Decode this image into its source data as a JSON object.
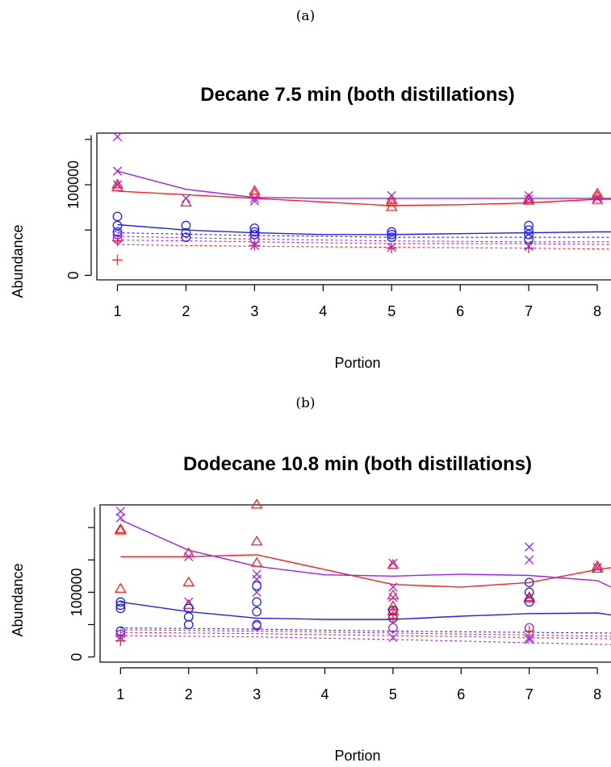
{
  "panels": {
    "a": {
      "label": "(a)"
    },
    "b": {
      "label": "(b)"
    }
  },
  "chart_data": [
    {
      "type": "scatter",
      "title": "Decane 7.5 min (both distillations)",
      "xlabel": "Portion",
      "ylabel": "Abundance",
      "xlim": [
        0.7,
        8.2
      ],
      "ylim": [
        -5000,
        157000
      ],
      "x_ticks": [
        "1",
        "2",
        "3",
        "4",
        "5",
        "6",
        "7",
        "8"
      ],
      "y_ticks": [
        {
          "value": 0,
          "label": "0"
        },
        {
          "value": 100000,
          "label": "100000"
        }
      ],
      "colors": {
        "red": "#ff2020",
        "blue": "#2020ff",
        "purple": "#a020f0"
      },
      "point_groups": [
        {
          "color": "red",
          "shape": "triangle",
          "points": [
            [
              1,
              97000
            ],
            [
              1,
              100000
            ],
            [
              2,
              80000
            ],
            [
              3,
              90000
            ],
            [
              3,
              93000
            ],
            [
              5,
              75000
            ],
            [
              5,
              80000
            ],
            [
              5,
              83000
            ],
            [
              7,
              82000
            ],
            [
              7,
              84000
            ],
            [
              8,
              83000
            ],
            [
              8,
              87000
            ],
            [
              8,
              90000
            ]
          ]
        },
        {
          "color": "purple",
          "shape": "x",
          "points": [
            [
              1,
              153000
            ],
            [
              1,
              115000
            ],
            [
              1,
              100000
            ],
            [
              2,
              85000
            ],
            [
              3,
              85000
            ],
            [
              3,
              82000
            ],
            [
              5,
              88000
            ],
            [
              7,
              88000
            ],
            [
              7,
              84000
            ],
            [
              8,
              85000
            ]
          ]
        },
        {
          "color": "blue",
          "shape": "circle",
          "points": [
            [
              1,
              65000
            ],
            [
              1,
              55000
            ],
            [
              1,
              48000
            ],
            [
              2,
              55000
            ],
            [
              2,
              47000
            ],
            [
              2,
              42000
            ],
            [
              3,
              52000
            ],
            [
              3,
              48000
            ],
            [
              3,
              45000
            ],
            [
              5,
              48000
            ],
            [
              5,
              45000
            ],
            [
              5,
              42000
            ],
            [
              7,
              55000
            ],
            [
              7,
              50000
            ],
            [
              7,
              45000
            ],
            [
              7,
              40000
            ]
          ]
        },
        {
          "color": "purple",
          "shape": "circle",
          "points": [
            [
              1,
              45000
            ],
            [
              1,
              40000
            ],
            [
              3,
              40000
            ]
          ]
        },
        {
          "color": "red",
          "shape": "plus",
          "points": [
            [
              1,
              38000
            ],
            [
              1,
              17000
            ],
            [
              3,
              33000
            ],
            [
              5,
              30000
            ],
            [
              7,
              30000
            ]
          ]
        },
        {
          "color": "purple",
          "shape": "x",
          "points": [
            [
              3,
              33000
            ],
            [
              5,
              31000
            ],
            [
              7,
              32000
            ]
          ]
        }
      ],
      "lines": [
        {
          "color": "red",
          "dash": false,
          "points": [
            [
              1,
              93000
            ],
            [
              2,
              89000
            ],
            [
              3,
              85000
            ],
            [
              4,
              81000
            ],
            [
              5,
              77000
            ],
            [
              6,
              78000
            ],
            [
              7,
              80000
            ],
            [
              8,
              84000
            ],
            [
              8.2,
              84000
            ]
          ]
        },
        {
          "color": "purple",
          "dash": false,
          "points": [
            [
              1,
              115000
            ],
            [
              2,
              95000
            ],
            [
              3,
              86000
            ],
            [
              4,
              85000
            ],
            [
              5,
              85000
            ],
            [
              6,
              85000
            ],
            [
              7,
              85000
            ],
            [
              8,
              85000
            ],
            [
              8.2,
              85000
            ]
          ]
        },
        {
          "color": "blue",
          "dash": false,
          "points": [
            [
              1,
              56000
            ],
            [
              2,
              50000
            ],
            [
              3,
              47000
            ],
            [
              4,
              45000
            ],
            [
              5,
              45000
            ],
            [
              6,
              46000
            ],
            [
              7,
              47000
            ],
            [
              8,
              48000
            ],
            [
              8.2,
              48000
            ]
          ]
        },
        {
          "color": "blue",
          "dash": true,
          "points": [
            [
              1,
              47000
            ],
            [
              3,
              44000
            ],
            [
              5,
              42000
            ],
            [
              7,
              42000
            ],
            [
              8.2,
              42000
            ]
          ]
        },
        {
          "color": "purple",
          "dash": true,
          "points": [
            [
              1,
              43000
            ],
            [
              3,
              40000
            ],
            [
              5,
              38000
            ],
            [
              7,
              37000
            ],
            [
              8.2,
              37000
            ]
          ]
        },
        {
          "color": "purple",
          "dash": true,
          "points": [
            [
              1,
              39000
            ],
            [
              3,
              37000
            ],
            [
              5,
              35000
            ],
            [
              7,
              35000
            ],
            [
              8.2,
              34000
            ]
          ]
        },
        {
          "color": "red",
          "dash": true,
          "points": [
            [
              1,
              34000
            ],
            [
              3,
              32000
            ],
            [
              5,
              31000
            ],
            [
              7,
              30000
            ],
            [
              8.2,
              29000
            ]
          ]
        }
      ]
    },
    {
      "type": "scatter",
      "title": "Dodecane 10.8 min (both distillations)",
      "xlabel": "Portion",
      "ylabel": "Abundance",
      "xlim": [
        0.7,
        8.2
      ],
      "ylim": [
        -8000,
        235000
      ],
      "x_ticks": [
        "1",
        "2",
        "3",
        "4",
        "5",
        "6",
        "7",
        "8"
      ],
      "y_ticks": [
        {
          "value": 0,
          "label": "0"
        },
        {
          "value": 100000,
          "label": "100000"
        }
      ],
      "colors": {
        "red": "#ff2020",
        "blue": "#2020ff",
        "purple": "#a020f0"
      },
      "point_groups": [
        {
          "color": "red",
          "shape": "triangle",
          "points": [
            [
              1,
              197000
            ],
            [
              1,
              195000
            ],
            [
              1,
              105000
            ],
            [
              2,
              160000
            ],
            [
              2,
              115000
            ],
            [
              2,
              80000
            ],
            [
              3,
              235000
            ],
            [
              3,
              178000
            ],
            [
              3,
              145000
            ],
            [
              5,
              142000
            ],
            [
              5,
              95000
            ],
            [
              5,
              78000
            ],
            [
              5,
              70000
            ],
            [
              7,
              92000
            ],
            [
              7,
              90000
            ],
            [
              8,
              136000
            ],
            [
              8,
              140000
            ]
          ]
        },
        {
          "color": "purple",
          "shape": "x",
          "points": [
            [
              1,
              225000
            ],
            [
              1,
              215000
            ],
            [
              2,
              155000
            ],
            [
              2,
              85000
            ],
            [
              3,
              128000
            ],
            [
              3,
              120000
            ],
            [
              3,
              100000
            ],
            [
              5,
              145000
            ],
            [
              5,
              108000
            ],
            [
              5,
              92000
            ],
            [
              7,
              170000
            ],
            [
              7,
              150000
            ],
            [
              8,
              138000
            ]
          ]
        },
        {
          "color": "blue",
          "shape": "circle",
          "points": [
            [
              1,
              85000
            ],
            [
              1,
              80000
            ],
            [
              1,
              75000
            ],
            [
              1,
              40000
            ],
            [
              2,
              75000
            ],
            [
              2,
              62000
            ],
            [
              2,
              50000
            ],
            [
              3,
              110000
            ],
            [
              3,
              85000
            ],
            [
              3,
              70000
            ],
            [
              3,
              50000
            ],
            [
              5,
              72000
            ],
            [
              5,
              60000
            ],
            [
              7,
              115000
            ],
            [
              7,
              100000
            ],
            [
              7,
              85000
            ]
          ]
        },
        {
          "color": "purple",
          "shape": "circle",
          "points": [
            [
              1,
              35000
            ],
            [
              3,
              48000
            ],
            [
              5,
              45000
            ],
            [
              7,
              45000
            ]
          ]
        },
        {
          "color": "red",
          "shape": "plus",
          "points": [
            [
              1,
              25000
            ],
            [
              1,
              32000
            ],
            [
              5,
              68000
            ],
            [
              5,
              60000
            ],
            [
              7,
              40000
            ]
          ]
        },
        {
          "color": "purple",
          "shape": "x",
          "points": [
            [
              1,
              30000
            ],
            [
              5,
              30000
            ],
            [
              7,
              30000
            ],
            [
              7,
              27000
            ]
          ]
        }
      ],
      "lines": [
        {
          "color": "red",
          "dash": false,
          "points": [
            [
              1,
              155000
            ],
            [
              2,
              155000
            ],
            [
              3,
              158000
            ],
            [
              4,
              135000
            ],
            [
              5,
              112000
            ],
            [
              6,
              108000
            ],
            [
              7,
              115000
            ],
            [
              8,
              135000
            ],
            [
              8.2,
              138000
            ]
          ]
        },
        {
          "color": "purple",
          "dash": false,
          "points": [
            [
              1,
              212000
            ],
            [
              2,
              165000
            ],
            [
              3,
              140000
            ],
            [
              4,
              127000
            ],
            [
              5,
              125000
            ],
            [
              6,
              128000
            ],
            [
              7,
              126000
            ],
            [
              8,
              118000
            ],
            [
              8.2,
              108000
            ]
          ]
        },
        {
          "color": "blue",
          "dash": false,
          "points": [
            [
              1,
              85000
            ],
            [
              2,
              70000
            ],
            [
              3,
              60000
            ],
            [
              4,
              58000
            ],
            [
              5,
              58000
            ],
            [
              6,
              63000
            ],
            [
              7,
              67000
            ],
            [
              8,
              68000
            ],
            [
              8.2,
              65000
            ]
          ]
        },
        {
          "color": "blue",
          "dash": true,
          "points": [
            [
              1,
              45000
            ],
            [
              3,
              43000
            ],
            [
              5,
              40000
            ],
            [
              7,
              38000
            ],
            [
              8.2,
              37000
            ]
          ]
        },
        {
          "color": "purple",
          "dash": true,
          "points": [
            [
              1,
              42000
            ],
            [
              3,
              40000
            ],
            [
              5,
              37000
            ],
            [
              7,
              34000
            ],
            [
              8.2,
              32000
            ]
          ]
        },
        {
          "color": "red",
          "dash": true,
          "points": [
            [
              1,
              38000
            ],
            [
              3,
              36000
            ],
            [
              5,
              33000
            ],
            [
              7,
              30000
            ],
            [
              8.2,
              28000
            ]
          ]
        },
        {
          "color": "purple",
          "dash": true,
          "points": [
            [
              1,
              33000
            ],
            [
              3,
              31000
            ],
            [
              5,
              27000
            ],
            [
              7,
              22000
            ],
            [
              8.2,
              19000
            ]
          ]
        }
      ]
    }
  ]
}
